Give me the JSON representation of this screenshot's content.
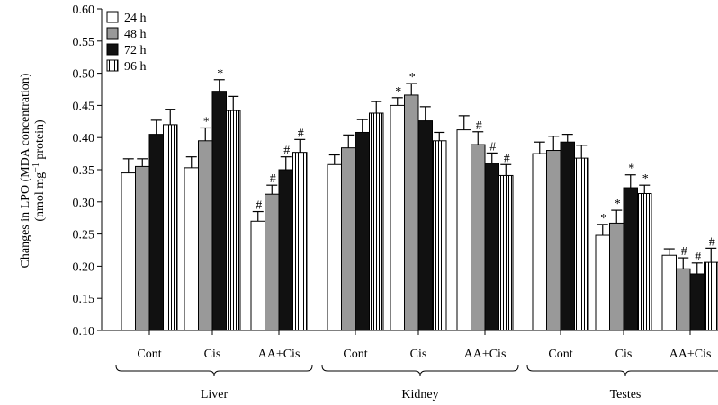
{
  "chart_data": {
    "type": "bar",
    "ylabel_line1": "Changes in LPO (MDA concentration)",
    "ylabel_line2_parts": [
      "(nmol mg",
      "−1",
      " protein)"
    ],
    "ylim": [
      0.1,
      0.6
    ],
    "yticks": [
      "0.10",
      "0.15",
      "0.20",
      "0.25",
      "0.30",
      "0.35",
      "0.40",
      "0.45",
      "0.50",
      "0.55",
      "0.60"
    ],
    "ytick_values": [
      0.1,
      0.15,
      0.2,
      0.25,
      0.3,
      0.35,
      0.4,
      0.45,
      0.5,
      0.55,
      0.6
    ],
    "legend_position": "top-left",
    "series": [
      {
        "name": "24 h",
        "fill": "#ffffff",
        "pattern": "none"
      },
      {
        "name": "48 h",
        "fill": "#999999",
        "pattern": "none"
      },
      {
        "name": "72 h",
        "fill": "#111111",
        "pattern": "none"
      },
      {
        "name": "96 h",
        "fill": "#ffffff",
        "pattern": "vertical-lines"
      }
    ],
    "groups": [
      {
        "name": "Liver",
        "categories": [
          {
            "label": "Cont",
            "values": [
              0.345,
              0.355,
              0.405,
              0.42
            ],
            "errors": [
              0.022,
              0.012,
              0.022,
              0.024
            ],
            "marks": [
              "",
              "",
              "",
              ""
            ]
          },
          {
            "label": "Cis",
            "values": [
              0.353,
              0.395,
              0.472,
              0.442
            ],
            "errors": [
              0.017,
              0.02,
              0.018,
              0.022
            ],
            "marks": [
              "",
              "*",
              "*",
              ""
            ]
          },
          {
            "label": "AA+Cis",
            "values": [
              0.27,
              0.312,
              0.35,
              0.377
            ],
            "errors": [
              0.015,
              0.014,
              0.02,
              0.02
            ],
            "marks": [
              "#",
              "#",
              "#",
              "#"
            ]
          }
        ]
      },
      {
        "name": "Kidney",
        "categories": [
          {
            "label": "Cont",
            "values": [
              0.358,
              0.384,
              0.408,
              0.438
            ],
            "errors": [
              0.015,
              0.02,
              0.02,
              0.018
            ],
            "marks": [
              "",
              "",
              "",
              ""
            ]
          },
          {
            "label": "Cis",
            "values": [
              0.45,
              0.466,
              0.426,
              0.395
            ],
            "errors": [
              0.012,
              0.018,
              0.022,
              0.013
            ],
            "marks": [
              "*",
              "*",
              "",
              ""
            ]
          },
          {
            "label": "AA+Cis",
            "values": [
              0.412,
              0.389,
              0.36,
              0.341
            ],
            "errors": [
              0.022,
              0.02,
              0.016,
              0.017
            ],
            "marks": [
              "",
              "#",
              "#",
              "#"
            ]
          }
        ]
      },
      {
        "name": "Testes",
        "categories": [
          {
            "label": "Cont",
            "values": [
              0.375,
              0.38,
              0.393,
              0.368
            ],
            "errors": [
              0.018,
              0.022,
              0.012,
              0.02
            ],
            "marks": [
              "",
              "",
              "",
              ""
            ]
          },
          {
            "label": "Cis",
            "values": [
              0.248,
              0.267,
              0.322,
              0.313
            ],
            "errors": [
              0.017,
              0.02,
              0.02,
              0.013
            ],
            "marks": [
              "*",
              "*",
              "*",
              "*"
            ]
          },
          {
            "label": "AA+Cis",
            "values": [
              0.217,
              0.196,
              0.188,
              0.206
            ],
            "errors": [
              0.01,
              0.017,
              0.017,
              0.022
            ],
            "marks": [
              "",
              "#",
              "#",
              "#"
            ]
          }
        ]
      }
    ]
  }
}
